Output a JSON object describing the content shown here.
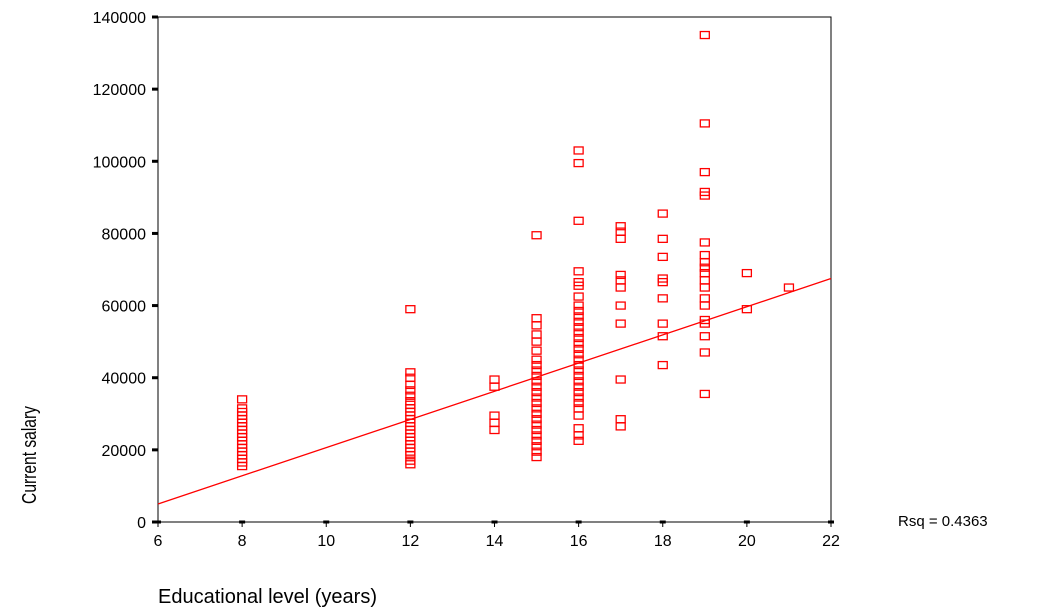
{
  "chart_data": {
    "type": "scatter",
    "xlabel": "Educational level (years)",
    "ylabel": "Current salary",
    "xlim": [
      6,
      22
    ],
    "ylim": [
      0,
      140000
    ],
    "x_ticks": [
      "6",
      "8",
      "10",
      "12",
      "14",
      "16",
      "18",
      "20",
      "22"
    ],
    "y_ticks": [
      "0",
      "20000",
      "40000",
      "60000",
      "80000",
      "100000",
      "120000",
      "140000"
    ],
    "grid": false,
    "marker_color": "#ff0000",
    "fit_line": {
      "x": [
        6,
        22
      ],
      "y": [
        5000,
        67500
      ],
      "color": "#ff0000"
    },
    "annotation": "Rsq = 0.4363",
    "points": [
      {
        "x": 8,
        "y": 15500
      },
      {
        "x": 8,
        "y": 16500
      },
      {
        "x": 8,
        "y": 17500
      },
      {
        "x": 8,
        "y": 18500
      },
      {
        "x": 8,
        "y": 19500
      },
      {
        "x": 8,
        "y": 20500
      },
      {
        "x": 8,
        "y": 21500
      },
      {
        "x": 8,
        "y": 22500
      },
      {
        "x": 8,
        "y": 23500
      },
      {
        "x": 8,
        "y": 24500
      },
      {
        "x": 8,
        "y": 25500
      },
      {
        "x": 8,
        "y": 26500
      },
      {
        "x": 8,
        "y": 27500
      },
      {
        "x": 8,
        "y": 28500
      },
      {
        "x": 8,
        "y": 29500
      },
      {
        "x": 8,
        "y": 30500
      },
      {
        "x": 8,
        "y": 31500
      },
      {
        "x": 8,
        "y": 34000
      },
      {
        "x": 12,
        "y": 16000
      },
      {
        "x": 12,
        "y": 17000
      },
      {
        "x": 12,
        "y": 18500
      },
      {
        "x": 12,
        "y": 19500
      },
      {
        "x": 12,
        "y": 20500
      },
      {
        "x": 12,
        "y": 21500
      },
      {
        "x": 12,
        "y": 22500
      },
      {
        "x": 12,
        "y": 23500
      },
      {
        "x": 12,
        "y": 24500
      },
      {
        "x": 12,
        "y": 25500
      },
      {
        "x": 12,
        "y": 26500
      },
      {
        "x": 12,
        "y": 27500
      },
      {
        "x": 12,
        "y": 28500
      },
      {
        "x": 12,
        "y": 29500
      },
      {
        "x": 12,
        "y": 30500
      },
      {
        "x": 12,
        "y": 31500
      },
      {
        "x": 12,
        "y": 32500
      },
      {
        "x": 12,
        "y": 33500
      },
      {
        "x": 12,
        "y": 35000
      },
      {
        "x": 12,
        "y": 36500
      },
      {
        "x": 12,
        "y": 38000
      },
      {
        "x": 12,
        "y": 40000
      },
      {
        "x": 12,
        "y": 41500
      },
      {
        "x": 12,
        "y": 59000
      },
      {
        "x": 14,
        "y": 25500
      },
      {
        "x": 14,
        "y": 27500
      },
      {
        "x": 14,
        "y": 29500
      },
      {
        "x": 14,
        "y": 37500
      },
      {
        "x": 14,
        "y": 39500
      },
      {
        "x": 15,
        "y": 18000
      },
      {
        "x": 15,
        "y": 19500
      },
      {
        "x": 15,
        "y": 21000
      },
      {
        "x": 15,
        "y": 22500
      },
      {
        "x": 15,
        "y": 24000
      },
      {
        "x": 15,
        "y": 25500
      },
      {
        "x": 15,
        "y": 27000
      },
      {
        "x": 15,
        "y": 28500
      },
      {
        "x": 15,
        "y": 30000
      },
      {
        "x": 15,
        "y": 31500
      },
      {
        "x": 15,
        "y": 33000
      },
      {
        "x": 15,
        "y": 34500
      },
      {
        "x": 15,
        "y": 36000
      },
      {
        "x": 15,
        "y": 37500
      },
      {
        "x": 15,
        "y": 39000
      },
      {
        "x": 15,
        "y": 40500
      },
      {
        "x": 15,
        "y": 42000
      },
      {
        "x": 15,
        "y": 43500
      },
      {
        "x": 15,
        "y": 45000
      },
      {
        "x": 15,
        "y": 47500
      },
      {
        "x": 15,
        "y": 50000
      },
      {
        "x": 15,
        "y": 52000
      },
      {
        "x": 15,
        "y": 54500
      },
      {
        "x": 15,
        "y": 56500
      },
      {
        "x": 15,
        "y": 79500
      },
      {
        "x": 16,
        "y": 22500
      },
      {
        "x": 16,
        "y": 24000
      },
      {
        "x": 16,
        "y": 26000
      },
      {
        "x": 16,
        "y": 29500
      },
      {
        "x": 16,
        "y": 31500
      },
      {
        "x": 16,
        "y": 33000
      },
      {
        "x": 16,
        "y": 34500
      },
      {
        "x": 16,
        "y": 36000
      },
      {
        "x": 16,
        "y": 37500
      },
      {
        "x": 16,
        "y": 39000
      },
      {
        "x": 16,
        "y": 40500
      },
      {
        "x": 16,
        "y": 42000
      },
      {
        "x": 16,
        "y": 43500
      },
      {
        "x": 16,
        "y": 45000
      },
      {
        "x": 16,
        "y": 46500
      },
      {
        "x": 16,
        "y": 48000
      },
      {
        "x": 16,
        "y": 49500
      },
      {
        "x": 16,
        "y": 51000
      },
      {
        "x": 16,
        "y": 52500
      },
      {
        "x": 16,
        "y": 54000
      },
      {
        "x": 16,
        "y": 55500
      },
      {
        "x": 16,
        "y": 57000
      },
      {
        "x": 16,
        "y": 58500
      },
      {
        "x": 16,
        "y": 60000
      },
      {
        "x": 16,
        "y": 62500
      },
      {
        "x": 16,
        "y": 65500
      },
      {
        "x": 16,
        "y": 66500
      },
      {
        "x": 16,
        "y": 69500
      },
      {
        "x": 16,
        "y": 83500
      },
      {
        "x": 16,
        "y": 99500
      },
      {
        "x": 16,
        "y": 103000
      },
      {
        "x": 17,
        "y": 26500
      },
      {
        "x": 17,
        "y": 28500
      },
      {
        "x": 17,
        "y": 39500
      },
      {
        "x": 17,
        "y": 55000
      },
      {
        "x": 17,
        "y": 60000
      },
      {
        "x": 17,
        "y": 65000
      },
      {
        "x": 17,
        "y": 67000
      },
      {
        "x": 17,
        "y": 68500
      },
      {
        "x": 17,
        "y": 78500
      },
      {
        "x": 17,
        "y": 80500
      },
      {
        "x": 17,
        "y": 82000
      },
      {
        "x": 18,
        "y": 43500
      },
      {
        "x": 18,
        "y": 51500
      },
      {
        "x": 18,
        "y": 55000
      },
      {
        "x": 18,
        "y": 62000
      },
      {
        "x": 18,
        "y": 66500
      },
      {
        "x": 18,
        "y": 67500
      },
      {
        "x": 18,
        "y": 73500
      },
      {
        "x": 18,
        "y": 78500
      },
      {
        "x": 18,
        "y": 85500
      },
      {
        "x": 19,
        "y": 35500
      },
      {
        "x": 19,
        "y": 47000
      },
      {
        "x": 19,
        "y": 51500
      },
      {
        "x": 19,
        "y": 55000
      },
      {
        "x": 19,
        "y": 56000
      },
      {
        "x": 19,
        "y": 60000
      },
      {
        "x": 19,
        "y": 62000
      },
      {
        "x": 19,
        "y": 65000
      },
      {
        "x": 19,
        "y": 67000
      },
      {
        "x": 19,
        "y": 69000
      },
      {
        "x": 19,
        "y": 70500
      },
      {
        "x": 19,
        "y": 72000
      },
      {
        "x": 19,
        "y": 74000
      },
      {
        "x": 19,
        "y": 77500
      },
      {
        "x": 19,
        "y": 90500
      },
      {
        "x": 19,
        "y": 91500
      },
      {
        "x": 19,
        "y": 97000
      },
      {
        "x": 19,
        "y": 110500
      },
      {
        "x": 19,
        "y": 135000
      },
      {
        "x": 20,
        "y": 59000
      },
      {
        "x": 20,
        "y": 69000
      },
      {
        "x": 21,
        "y": 65000
      }
    ]
  }
}
